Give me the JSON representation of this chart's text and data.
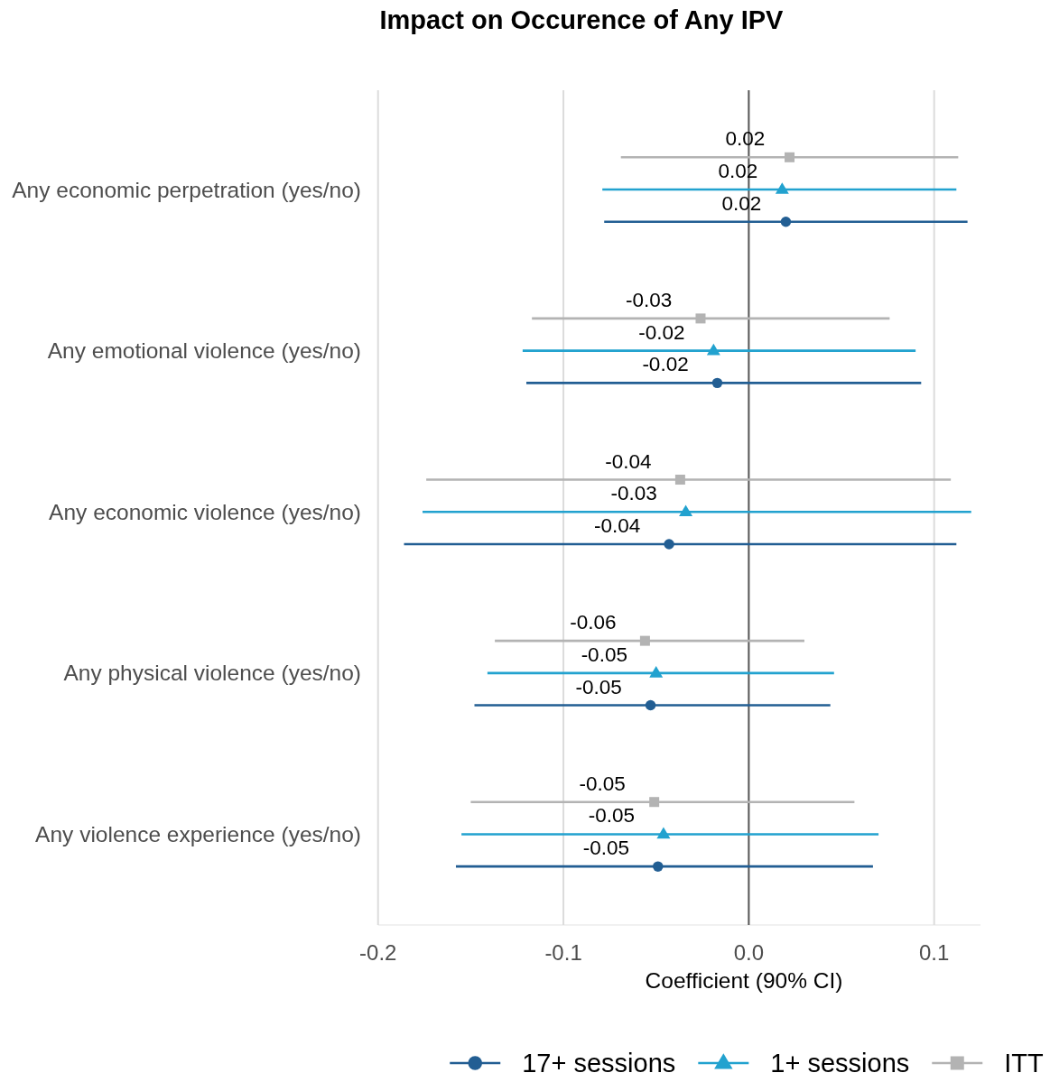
{
  "chart_data": {
    "type": "scatter",
    "title": "Impact on Occurence of Any IPV",
    "xlabel": "Coefficient (90% CI)",
    "orientation": "horizontal",
    "categories": [
      "Any economic perpetration (yes/no)",
      "Any emotional violence (yes/no)",
      "Any economic violence (yes/no)",
      "Any physical violence (yes/no)",
      "Any violence experience (yes/no)"
    ],
    "series": [
      {
        "name": "17+ sessions",
        "color": "#225e93",
        "marker": "circle",
        "values": [
          0.02,
          -0.017,
          -0.043,
          -0.053,
          -0.049
        ],
        "errors": [
          [
            -0.078,
            0.118
          ],
          [
            -0.12,
            0.093
          ],
          [
            -0.186,
            0.112
          ],
          [
            -0.148,
            0.044
          ],
          [
            -0.158,
            0.067
          ]
        ],
        "value_labels": [
          "0.02",
          "-0.02",
          "-0.04",
          "-0.05",
          "-0.05"
        ]
      },
      {
        "name": "1+ sessions",
        "color": "#22a2cf",
        "marker": "triangle",
        "values": [
          0.018,
          -0.019,
          -0.034,
          -0.05,
          -0.046
        ],
        "errors": [
          [
            -0.079,
            0.112
          ],
          [
            -0.122,
            0.09
          ],
          [
            -0.176,
            0.12
          ],
          [
            -0.141,
            0.046
          ],
          [
            -0.155,
            0.07
          ]
        ],
        "value_labels": [
          "0.02",
          "-0.02",
          "-0.03",
          "-0.05",
          "-0.05"
        ]
      },
      {
        "name": "ITT",
        "color": "#b3b3b3",
        "marker": "square",
        "values": [
          0.022,
          -0.026,
          -0.037,
          -0.056,
          -0.051
        ],
        "errors": [
          [
            -0.069,
            0.113
          ],
          [
            -0.117,
            0.076
          ],
          [
            -0.174,
            0.109
          ],
          [
            -0.137,
            0.03
          ],
          [
            -0.15,
            0.057
          ]
        ],
        "value_labels": [
          "0.02",
          "-0.03",
          "-0.04",
          "-0.06",
          "-0.05"
        ]
      }
    ],
    "xlim": [
      -0.2,
      0.125
    ],
    "xticks": [
      -0.2,
      -0.1,
      {
        "value": 0,
        "label": "0.0"
      },
      0.1
    ],
    "grid": "x",
    "legend": "bottom",
    "ref_lines": [
      {
        "axis": "x",
        "value": 0,
        "color": "#5a5a5a"
      }
    ]
  }
}
